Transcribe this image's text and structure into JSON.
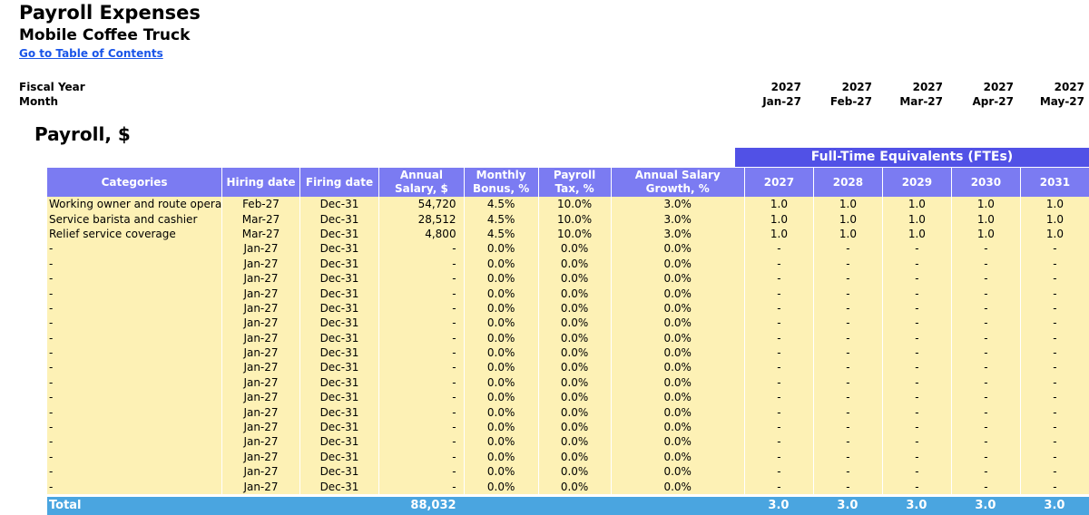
{
  "header": {
    "title": "Payroll Expenses",
    "subtitle": "Mobile Coffee Truck",
    "toc_link": "Go to Table of Contents",
    "fiscal_year_label": "Fiscal Year",
    "month_label": "Month",
    "timeline_years": [
      "2027",
      "2027",
      "2027",
      "2027",
      "2027"
    ],
    "timeline_months": [
      "Jan-27",
      "Feb-27",
      "Mar-27",
      "Apr-27",
      "May-27"
    ]
  },
  "section_title": "Payroll, $",
  "fte_band_label": "Full-Time Equivalents (FTEs)",
  "columns": {
    "categories": "Categories",
    "hiring": "Hiring date",
    "firing": "Firing date",
    "salary": "Annual Salary, $",
    "bonus": "Monthly Bonus, %",
    "tax": "Payroll Tax, %",
    "growth": "Annual Salary Growth, %",
    "fte_years": [
      "2027",
      "2028",
      "2029",
      "2030",
      "2031"
    ]
  },
  "rows": [
    {
      "name": "Working owner and route opera",
      "hiring": "Feb-27",
      "firing": "Dec-31",
      "salary": "54,720",
      "bonus": "4.5%",
      "tax": "10.0%",
      "growth": "3.0%",
      "fte": [
        "1.0",
        "1.0",
        "1.0",
        "1.0",
        "1.0"
      ]
    },
    {
      "name": "Service barista and cashier",
      "hiring": "Mar-27",
      "firing": "Dec-31",
      "salary": "28,512",
      "bonus": "4.5%",
      "tax": "10.0%",
      "growth": "3.0%",
      "fte": [
        "1.0",
        "1.0",
        "1.0",
        "1.0",
        "1.0"
      ]
    },
    {
      "name": "Relief service coverage",
      "hiring": "Mar-27",
      "firing": "Dec-31",
      "salary": "4,800",
      "bonus": "4.5%",
      "tax": "10.0%",
      "growth": "3.0%",
      "fte": [
        "1.0",
        "1.0",
        "1.0",
        "1.0",
        "1.0"
      ]
    },
    {
      "name": "-",
      "hiring": "Jan-27",
      "firing": "Dec-31",
      "salary": "-",
      "bonus": "0.0%",
      "tax": "0.0%",
      "growth": "0.0%",
      "fte": [
        "-",
        "-",
        "-",
        "-",
        "-"
      ]
    },
    {
      "name": "-",
      "hiring": "Jan-27",
      "firing": "Dec-31",
      "salary": "-",
      "bonus": "0.0%",
      "tax": "0.0%",
      "growth": "0.0%",
      "fte": [
        "-",
        "-",
        "-",
        "-",
        "-"
      ]
    },
    {
      "name": "-",
      "hiring": "Jan-27",
      "firing": "Dec-31",
      "salary": "-",
      "bonus": "0.0%",
      "tax": "0.0%",
      "growth": "0.0%",
      "fte": [
        "-",
        "-",
        "-",
        "-",
        "-"
      ]
    },
    {
      "name": "-",
      "hiring": "Jan-27",
      "firing": "Dec-31",
      "salary": "-",
      "bonus": "0.0%",
      "tax": "0.0%",
      "growth": "0.0%",
      "fte": [
        "-",
        "-",
        "-",
        "-",
        "-"
      ]
    },
    {
      "name": "-",
      "hiring": "Jan-27",
      "firing": "Dec-31",
      "salary": "-",
      "bonus": "0.0%",
      "tax": "0.0%",
      "growth": "0.0%",
      "fte": [
        "-",
        "-",
        "-",
        "-",
        "-"
      ]
    },
    {
      "name": "-",
      "hiring": "Jan-27",
      "firing": "Dec-31",
      "salary": "-",
      "bonus": "0.0%",
      "tax": "0.0%",
      "growth": "0.0%",
      "fte": [
        "-",
        "-",
        "-",
        "-",
        "-"
      ]
    },
    {
      "name": "-",
      "hiring": "Jan-27",
      "firing": "Dec-31",
      "salary": "-",
      "bonus": "0.0%",
      "tax": "0.0%",
      "growth": "0.0%",
      "fte": [
        "-",
        "-",
        "-",
        "-",
        "-"
      ]
    },
    {
      "name": "-",
      "hiring": "Jan-27",
      "firing": "Dec-31",
      "salary": "-",
      "bonus": "0.0%",
      "tax": "0.0%",
      "growth": "0.0%",
      "fte": [
        "-",
        "-",
        "-",
        "-",
        "-"
      ]
    },
    {
      "name": "-",
      "hiring": "Jan-27",
      "firing": "Dec-31",
      "salary": "-",
      "bonus": "0.0%",
      "tax": "0.0%",
      "growth": "0.0%",
      "fte": [
        "-",
        "-",
        "-",
        "-",
        "-"
      ]
    },
    {
      "name": "-",
      "hiring": "Jan-27",
      "firing": "Dec-31",
      "salary": "-",
      "bonus": "0.0%",
      "tax": "0.0%",
      "growth": "0.0%",
      "fte": [
        "-",
        "-",
        "-",
        "-",
        "-"
      ]
    },
    {
      "name": "-",
      "hiring": "Jan-27",
      "firing": "Dec-31",
      "salary": "-",
      "bonus": "0.0%",
      "tax": "0.0%",
      "growth": "0.0%",
      "fte": [
        "-",
        "-",
        "-",
        "-",
        "-"
      ]
    },
    {
      "name": "-",
      "hiring": "Jan-27",
      "firing": "Dec-31",
      "salary": "-",
      "bonus": "0.0%",
      "tax": "0.0%",
      "growth": "0.0%",
      "fte": [
        "-",
        "-",
        "-",
        "-",
        "-"
      ]
    },
    {
      "name": "-",
      "hiring": "Jan-27",
      "firing": "Dec-31",
      "salary": "-",
      "bonus": "0.0%",
      "tax": "0.0%",
      "growth": "0.0%",
      "fte": [
        "-",
        "-",
        "-",
        "-",
        "-"
      ]
    },
    {
      "name": "-",
      "hiring": "Jan-27",
      "firing": "Dec-31",
      "salary": "-",
      "bonus": "0.0%",
      "tax": "0.0%",
      "growth": "0.0%",
      "fte": [
        "-",
        "-",
        "-",
        "-",
        "-"
      ]
    },
    {
      "name": "-",
      "hiring": "Jan-27",
      "firing": "Dec-31",
      "salary": "-",
      "bonus": "0.0%",
      "tax": "0.0%",
      "growth": "0.0%",
      "fte": [
        "-",
        "-",
        "-",
        "-",
        "-"
      ]
    },
    {
      "name": "-",
      "hiring": "Jan-27",
      "firing": "Dec-31",
      "salary": "-",
      "bonus": "0.0%",
      "tax": "0.0%",
      "growth": "0.0%",
      "fte": [
        "-",
        "-",
        "-",
        "-",
        "-"
      ]
    },
    {
      "name": "-",
      "hiring": "Jan-27",
      "firing": "Dec-31",
      "salary": "-",
      "bonus": "0.0%",
      "tax": "0.0%",
      "growth": "0.0%",
      "fte": [
        "-",
        "-",
        "-",
        "-",
        "-"
      ]
    }
  ],
  "total": {
    "label": "Total",
    "salary": "88,032",
    "fte": [
      "3.0",
      "3.0",
      "3.0",
      "3.0",
      "3.0"
    ]
  },
  "colors": {
    "header_fill": "#7b7bf2",
    "fte_band_fill": "#5151e6",
    "input_cell_fill": "#fdf1b5",
    "total_fill": "#4aa5e0",
    "link": "#1a55e8"
  }
}
